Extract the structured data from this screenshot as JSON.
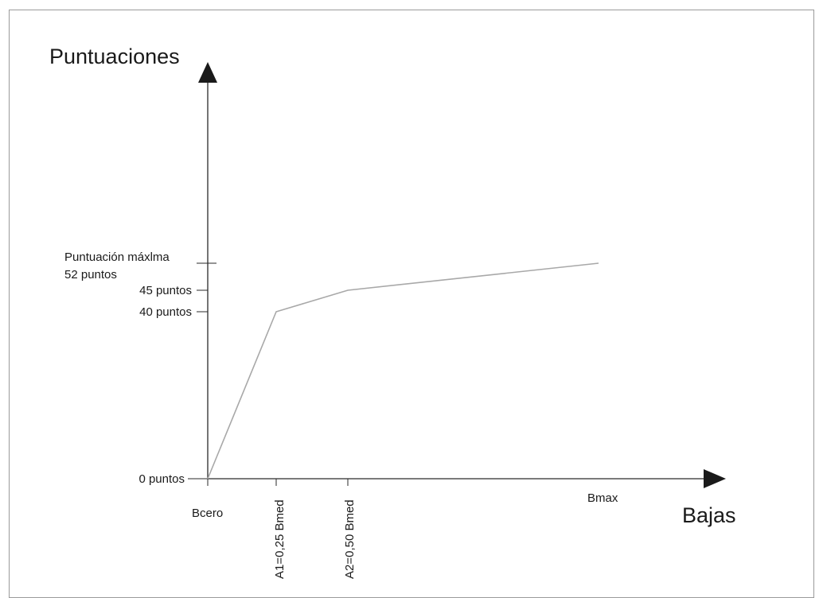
{
  "chart_data": {
    "type": "line",
    "ylabel": "Puntuaciones",
    "xlabel": "Bajas",
    "y_ticks": [
      {
        "value": 0,
        "label": "0 puntos"
      },
      {
        "value": 40,
        "label": "40 puntos"
      },
      {
        "value": 45,
        "label": "45 puntos"
      },
      {
        "value": 52,
        "label": "Puntuación máxlma",
        "label2": "52 puntos"
      }
    ],
    "x_ticks": [
      {
        "value": 0,
        "label": "Bcero"
      },
      {
        "value": 0.25,
        "label": "A1=0,25 Bmed"
      },
      {
        "value": 0.5,
        "label": "A2=0,50 Bmed"
      },
      {
        "value": 1.42,
        "label": "Bmax"
      }
    ],
    "series": [
      {
        "x": [
          0,
          0.25,
          0.5,
          1.42
        ],
        "y": [
          0,
          40,
          45,
          52
        ]
      }
    ],
    "colors": {
      "line": "#a8a8a8",
      "axis": "#2a2a2a"
    }
  }
}
